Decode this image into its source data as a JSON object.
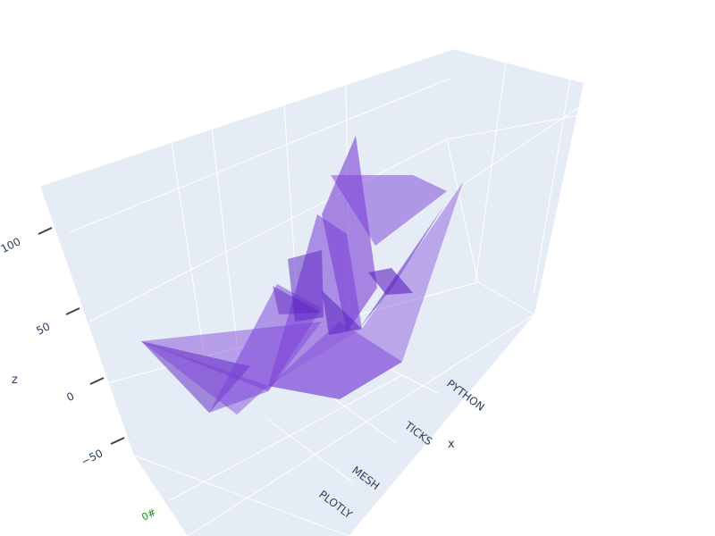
{
  "chart_data": {
    "type": "mesh3d",
    "title": "",
    "colors": {
      "scene_bg": "#e5ecf6",
      "grid": "#ffffff",
      "mesh": "#7a3fd6",
      "mesh_dark": "#5b22c2",
      "tick_text": "#2a3f5f",
      "y_tick_text": "#1a8f1a"
    },
    "axes": {
      "x": {
        "title": "x",
        "ticks": [
          "PLOTLY",
          "MESH",
          "TICKS",
          "PYTHON"
        ]
      },
      "y": {
        "title": "",
        "ticks": [
          "0#"
        ]
      },
      "z": {
        "title": "z",
        "ticks": [
          "−50",
          "0",
          "50",
          "100"
        ],
        "range": [
          -75,
          100
        ]
      }
    }
  }
}
